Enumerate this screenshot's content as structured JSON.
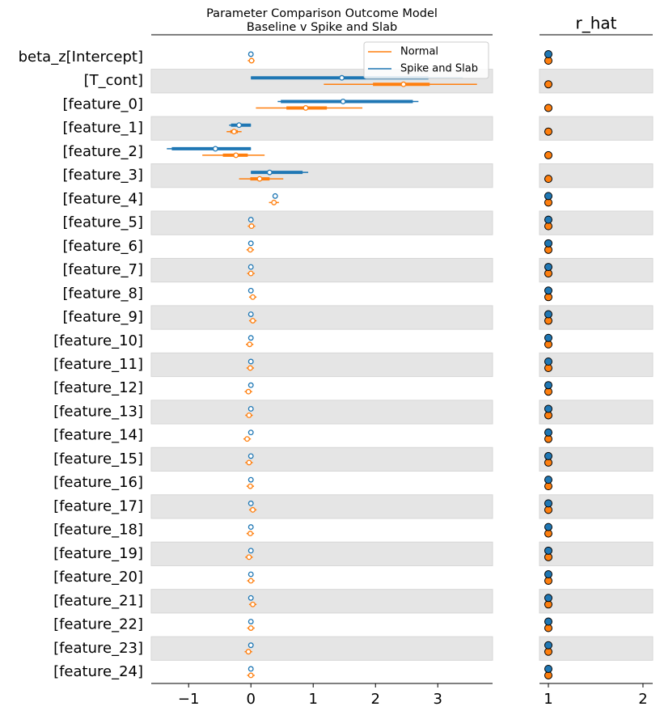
{
  "chart_data": [
    {
      "type": "forest",
      "title": [
        "Parameter Comparison Outcome Model",
        "Baseline v Spike and Slab"
      ],
      "categories": [
        "beta_z[Intercept]",
        "[T_cont]",
        "[feature_0]",
        "[feature_1]",
        "[feature_2]",
        "[feature_3]",
        "[feature_4]",
        "[feature_5]",
        "[feature_6]",
        "[feature_7]",
        "[feature_8]",
        "[feature_9]",
        "[feature_10]",
        "[feature_11]",
        "[feature_12]",
        "[feature_13]",
        "[feature_14]",
        "[feature_15]",
        "[feature_16]",
        "[feature_17]",
        "[feature_18]",
        "[feature_19]",
        "[feature_20]",
        "[feature_21]",
        "[feature_22]",
        "[feature_23]",
        "[feature_24]"
      ],
      "series": [
        {
          "name": "Normal",
          "color": "#ff7f0e",
          "mean": [
            0.01,
            2.45,
            0.88,
            -0.27,
            -0.24,
            0.14,
            0.37,
            0.01,
            -0.01,
            0,
            0.03,
            0.03,
            -0.02,
            -0.01,
            -0.04,
            -0.03,
            -0.06,
            -0.03,
            -0.01,
            0.03,
            -0.01,
            -0.03,
            0,
            0.03,
            0,
            -0.04,
            0
          ],
          "hdi_low": [
            -0.05,
            1.17,
            0.08,
            -0.39,
            -0.78,
            -0.19,
            0.29,
            -0.05,
            -0.07,
            -0.06,
            -0.03,
            -0.03,
            -0.08,
            -0.07,
            -0.1,
            -0.09,
            -0.12,
            -0.09,
            -0.07,
            -0.03,
            -0.07,
            -0.09,
            -0.06,
            -0.03,
            -0.06,
            -0.1,
            -0.06
          ],
          "hdi_high": [
            0.06,
            3.63,
            1.79,
            -0.15,
            0.22,
            0.52,
            0.45,
            0.07,
            0.05,
            0.06,
            0.09,
            0.09,
            0.04,
            0.05,
            0.02,
            0.03,
            0,
            0.03,
            0.05,
            0.09,
            0.05,
            0.03,
            0.06,
            0.09,
            0.06,
            0.02,
            0.06
          ],
          "iqr_low": [
            -0.01,
            1.96,
            0.57,
            -0.33,
            -0.45,
            -0.01,
            0.34,
            -0.01,
            -0.03,
            -0.02,
            0.01,
            0.01,
            -0.04,
            -0.03,
            -0.06,
            -0.05,
            -0.08,
            -0.05,
            -0.03,
            0.01,
            -0.03,
            -0.05,
            -0.02,
            0.01,
            -0.02,
            -0.06,
            -0.02
          ],
          "iqr_high": [
            0.03,
            2.87,
            1.22,
            -0.21,
            -0.05,
            0.3,
            0.4,
            0.03,
            0.01,
            0.02,
            0.05,
            0.05,
            0,
            0.01,
            -0.02,
            -0.01,
            -0.04,
            -0.01,
            0.01,
            0.05,
            0.01,
            -0.01,
            0.02,
            0.05,
            0.02,
            -0.02,
            0.02
          ]
        },
        {
          "name": "Spike and Slab",
          "color": "#1f77b4",
          "mean": [
            0,
            1.46,
            1.48,
            -0.19,
            -0.57,
            0.3,
            0.39,
            0,
            0,
            0,
            0,
            0,
            0,
            0,
            0,
            0,
            0,
            0,
            0,
            0,
            0,
            0,
            0,
            0,
            0,
            0,
            0
          ],
          "hdi_low": [
            0,
            0,
            0.43,
            -0.35,
            -1.35,
            0,
            0.39,
            0,
            0,
            0,
            0,
            0,
            0,
            0,
            0,
            0,
            0,
            0,
            0,
            0,
            0,
            0,
            0,
            0,
            0,
            0,
            0
          ],
          "hdi_high": [
            0,
            3.4,
            2.69,
            0,
            0,
            0.92,
            0.39,
            0,
            0,
            0,
            0,
            0,
            0,
            0,
            0,
            0,
            0,
            0,
            0,
            0,
            0,
            0,
            0,
            0,
            0,
            0,
            0
          ],
          "iqr_low": [
            0,
            0,
            0.48,
            -0.32,
            -1.27,
            0,
            0.39,
            0,
            0,
            0,
            0,
            0,
            0,
            0,
            0,
            0,
            0,
            0,
            0,
            0,
            0,
            0,
            0,
            0,
            0,
            0,
            0
          ],
          "iqr_high": [
            0,
            2.85,
            2.6,
            0,
            0,
            0.83,
            0.39,
            0,
            0,
            0,
            0,
            0,
            0,
            0,
            0,
            0,
            0,
            0,
            0,
            0,
            0,
            0,
            0,
            0,
            0,
            0,
            0
          ]
        }
      ],
      "xlim": [
        -1.6,
        3.88
      ],
      "xticks": [
        {
          "value": -1,
          "label": "−1"
        },
        0,
        1,
        2,
        3
      ],
      "legend": "upper right"
    },
    {
      "type": "dot",
      "title": "r_hat",
      "series": [
        {
          "color": "#ff7f0e",
          "values": [
            1,
            1,
            1,
            1,
            1,
            1,
            1,
            1,
            1,
            1,
            1,
            1,
            1,
            1,
            1,
            1,
            1,
            1,
            1,
            1,
            1,
            1,
            1,
            1,
            1,
            1,
            1
          ]
        },
        {
          "color": "#1f77b4",
          "values": [
            1,
            null,
            null,
            null,
            null,
            null,
            1,
            1,
            1,
            1,
            1,
            1,
            1,
            1,
            1,
            1,
            1,
            1,
            1,
            1,
            1,
            1,
            1,
            1,
            1,
            1,
            1
          ]
        }
      ],
      "xlim": [
        0.906,
        2.103
      ],
      "xticks": [
        1,
        2
      ]
    }
  ]
}
